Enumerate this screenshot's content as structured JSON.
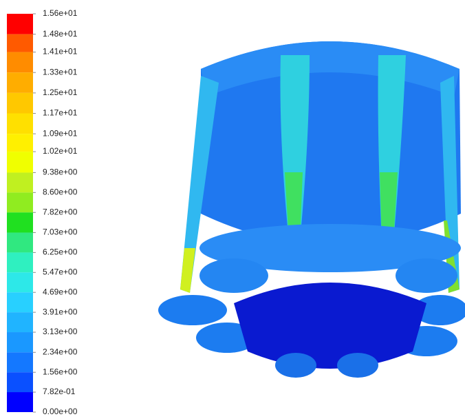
{
  "chart_data": {
    "type": "contour",
    "yticks": [
      {
        "value": 15.6,
        "label": "1.56e+01"
      },
      {
        "value": 14.8,
        "label": "1.48e+01"
      },
      {
        "value": 14.1,
        "label": "1.41e+01"
      },
      {
        "value": 13.3,
        "label": "1.33e+01"
      },
      {
        "value": 12.5,
        "label": "1.25e+01"
      },
      {
        "value": 11.7,
        "label": "1.17e+01"
      },
      {
        "value": 10.9,
        "label": "1.09e+01"
      },
      {
        "value": 10.2,
        "label": "1.02e+01"
      },
      {
        "value": 9.38,
        "label": "9.38e+00"
      },
      {
        "value": 8.6,
        "label": "8.60e+00"
      },
      {
        "value": 7.82,
        "label": "7.82e+00"
      },
      {
        "value": 7.03,
        "label": "7.03e+00"
      },
      {
        "value": 6.25,
        "label": "6.25e+00"
      },
      {
        "value": 5.47,
        "label": "5.47e+00"
      },
      {
        "value": 4.69,
        "label": "4.69e+00"
      },
      {
        "value": 3.91,
        "label": "3.91e+00"
      },
      {
        "value": 3.13,
        "label": "3.13e+00"
      },
      {
        "value": 2.34,
        "label": "2.34e+00"
      },
      {
        "value": 1.56,
        "label": "1.56e+00"
      },
      {
        "value": 0.782,
        "label": "7.82e-01"
      },
      {
        "value": 0,
        "label": "0.00e+00"
      }
    ],
    "ylim": [
      0,
      15.6
    ],
    "colors": [
      "#ff0000",
      "#ff5a00",
      "#ff8c00",
      "#ffad00",
      "#ffc800",
      "#ffe000",
      "#fff000",
      "#f0ff00",
      "#c0f020",
      "#90ec20",
      "#20e020",
      "#30e880",
      "#2ff0c0",
      "#2de8e8",
      "#28d0ff",
      "#20b4ff",
      "#1a98ff",
      "#1478ff",
      "#0a50ff",
      "#0000ff"
    ]
  }
}
